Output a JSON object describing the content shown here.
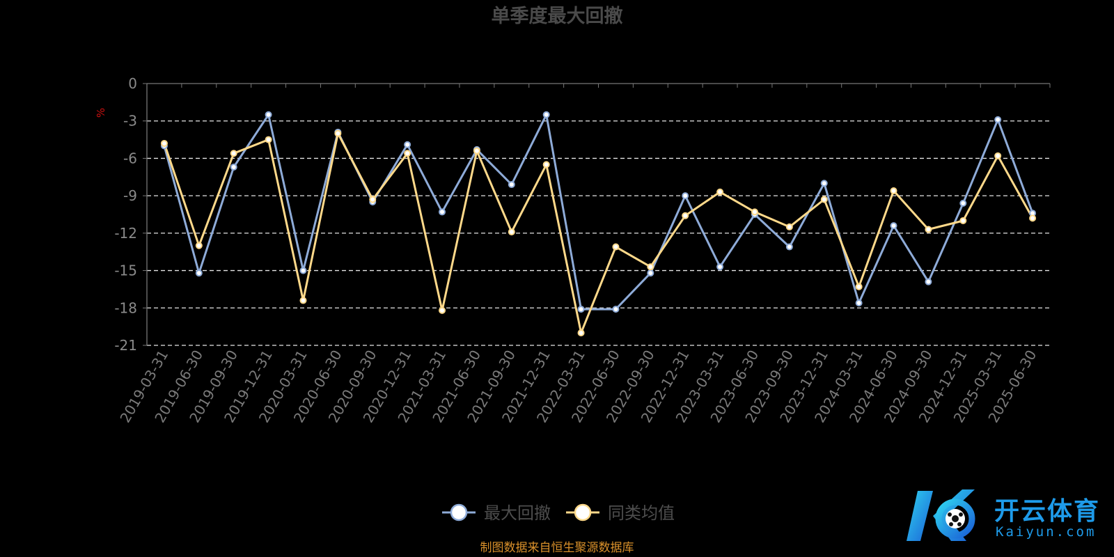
{
  "chart_data": {
    "type": "line",
    "title": "单季度最大回撤",
    "ylabel": "%",
    "ylim": [
      -21,
      0
    ],
    "yticks": [
      0,
      -3,
      -6,
      -9,
      -12,
      -15,
      -18,
      -21
    ],
    "grid": true,
    "legend_position": "bottom-center",
    "x": [
      "2019-03-31",
      "2019-06-30",
      "2019-09-30",
      "2019-12-31",
      "2020-03-31",
      "2020-06-30",
      "2020-09-30",
      "2020-12-31",
      "2021-03-31",
      "2021-06-30",
      "2021-09-30",
      "2021-12-31",
      "2022-03-31",
      "2022-06-30",
      "2022-09-30",
      "2022-12-31",
      "2023-03-31",
      "2023-06-30",
      "2023-09-30",
      "2023-12-31",
      "2024-03-31",
      "2024-06-30",
      "2024-09-30",
      "2024-12-31",
      "2025-03-31",
      "2025-06-30"
    ],
    "series": [
      {
        "name": "最大回撤",
        "color": "#8eabd8",
        "values": [
          -5.0,
          -15.2,
          -6.7,
          -2.5,
          -15.0,
          -3.9,
          -9.5,
          -4.9,
          -10.3,
          -5.3,
          -8.1,
          -2.5,
          -18.1,
          -18.1,
          -15.2,
          -9.0,
          -14.7,
          -10.5,
          -13.1,
          -8.0,
          -17.6,
          -11.4,
          -15.9,
          -9.6,
          -2.9,
          -10.4
        ]
      },
      {
        "name": "同类均值",
        "color": "#ffd98a",
        "values": [
          -4.8,
          -13.0,
          -5.6,
          -4.5,
          -17.4,
          -4.0,
          -9.3,
          -5.6,
          -18.2,
          -5.4,
          -11.9,
          -6.5,
          -20.0,
          -13.1,
          -14.7,
          -10.6,
          -8.7,
          -10.3,
          -11.5,
          -9.3,
          -16.3,
          -8.6,
          -11.7,
          -11.0,
          -5.8,
          -10.8
        ]
      }
    ],
    "source_note": "制图数据来自恒生聚源数据库"
  },
  "watermark": {
    "cn": "开云体育",
    "en": "Kaiyun.com"
  }
}
